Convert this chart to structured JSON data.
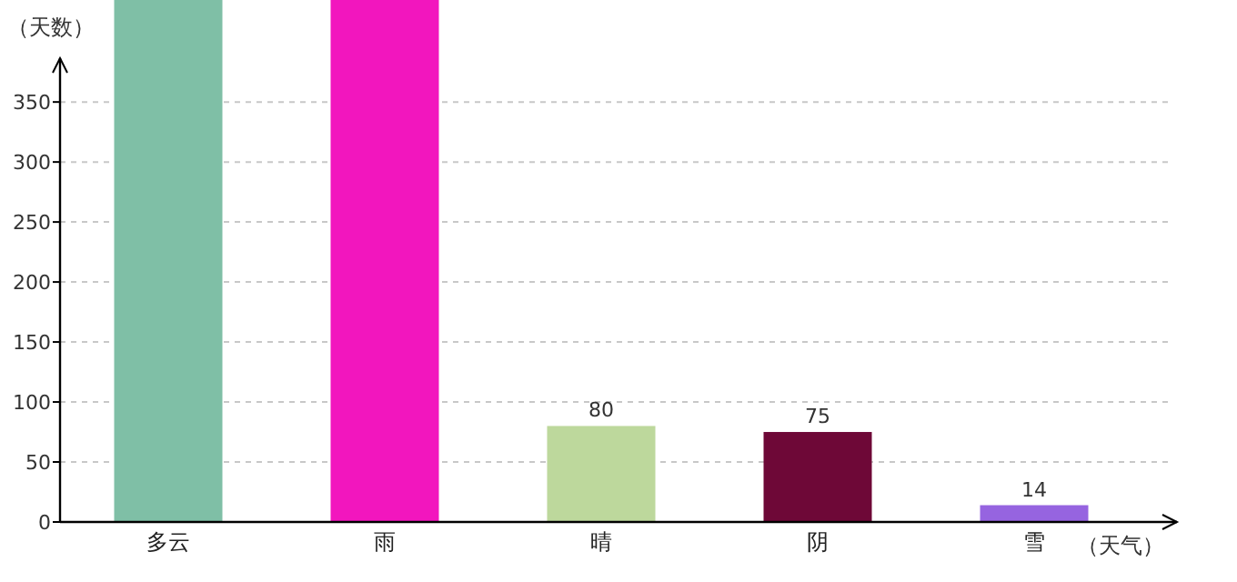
{
  "chart_data": {
    "type": "bar",
    "xlabel": "（天气）",
    "ylabel": "（天数）",
    "categories": [
      "多云",
      "雨",
      "晴",
      "阴",
      "雪"
    ],
    "values": [
      435,
      435,
      80,
      75,
      14
    ],
    "colors": [
      "#7fbfa6",
      "#f216be",
      "#bdd89c",
      "#6e0837",
      "#9664e0"
    ],
    "value_labels": [
      null,
      null,
      "80",
      "75",
      "14"
    ],
    "ylim": [
      0,
      435
    ],
    "yticks": [
      0,
      50,
      100,
      150,
      200,
      250,
      300,
      350
    ],
    "grid": "y"
  }
}
